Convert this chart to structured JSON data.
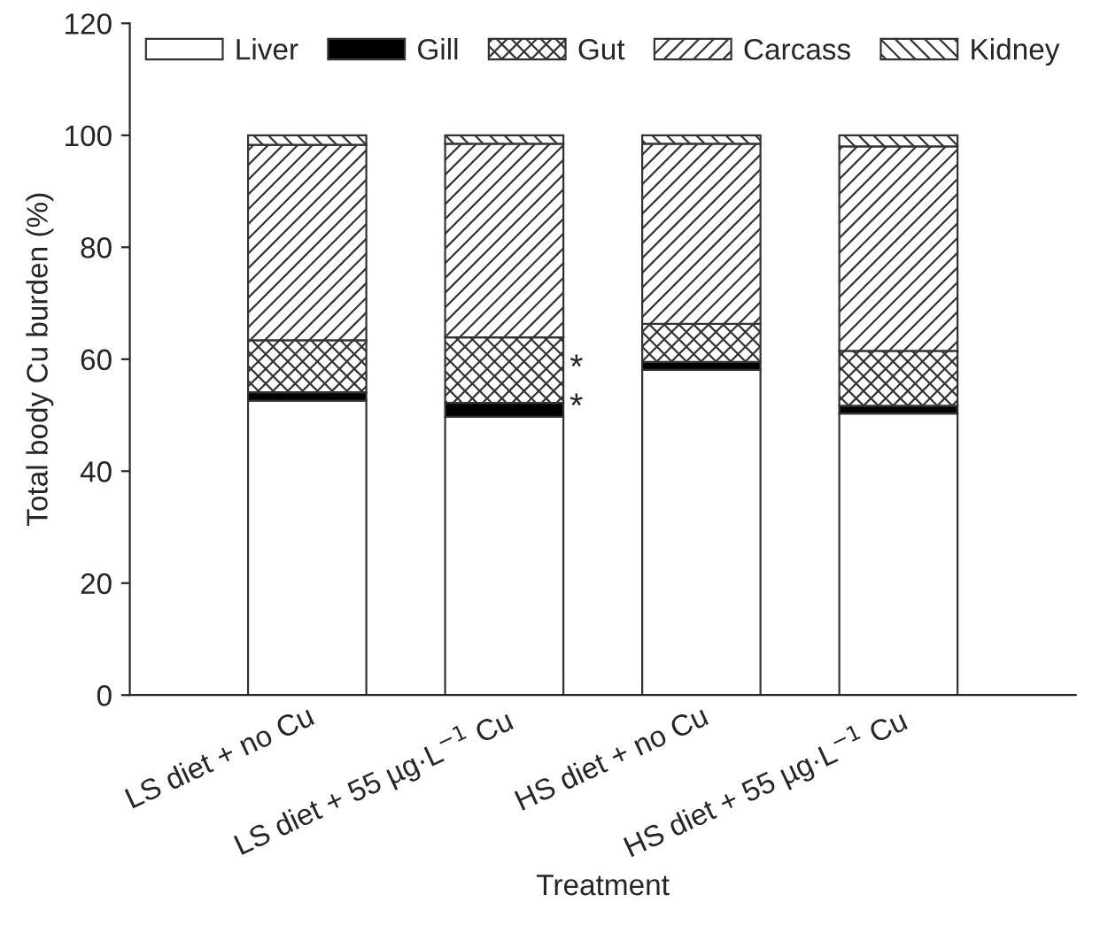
{
  "chart_data": {
    "type": "bar",
    "stacked": true,
    "xlabel": "Treatment",
    "ylabel": "Total body Cu burden (%)",
    "categories": [
      "LS diet + no Cu",
      "LS diet + 55 µg·L$^{−1}$ Cu",
      "HS diet + no Cu",
      "HS diet + 55 µg·L$^{−1}$ Cu"
    ],
    "series": [
      {
        "name": "Liver",
        "color": "#ffffff",
        "values": [
          52.6,
          49.7,
          58.1,
          50.3
        ]
      },
      {
        "name": "Gill",
        "color": "#000000",
        "values": [
          1.5,
          2.5,
          1.4,
          1.4
        ]
      },
      {
        "name": "Gut",
        "color": "#333333",
        "values": [
          9.3,
          11.7,
          6.8,
          9.8
        ]
      },
      {
        "name": "Carcass",
        "color": "#333333",
        "values": [
          34.9,
          34.6,
          32.2,
          36.5
        ]
      },
      {
        "name": "Kidney",
        "color": "#333333",
        "values": [
          1.7,
          1.5,
          1.5,
          2.0
        ]
      }
    ],
    "annotations": [
      "*",
      "*"
    ],
    "ylim": [
      0,
      120
    ],
    "yticks": [
      0,
      20,
      40,
      60,
      80,
      100,
      120
    ],
    "legend": "top",
    "grid": false
  }
}
